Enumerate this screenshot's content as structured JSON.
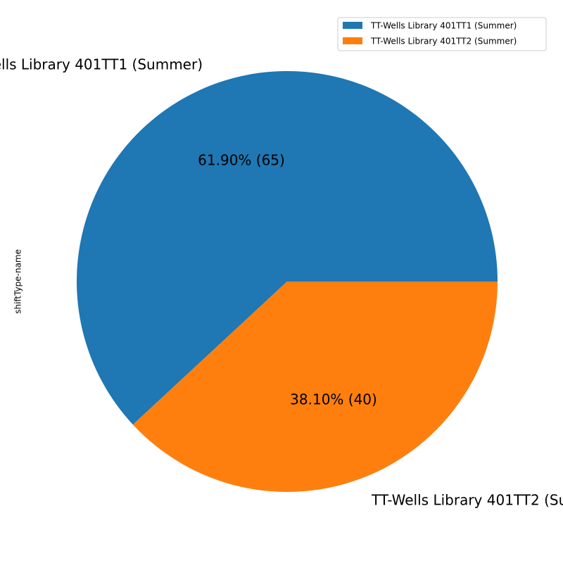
{
  "chart_data": {
    "type": "pie",
    "ylabel": "shiftType-name",
    "slices": [
      {
        "label": "TT-Wells Library 401TT1 (Summer)",
        "value": 65,
        "percent_label": "61.90%  (65)",
        "color": "#1f77b4"
      },
      {
        "label": "TT-Wells Library 401TT2 (Summer)",
        "value": 40,
        "percent_label": "38.10%  (40)",
        "color": "#ff7f0e"
      }
    ],
    "legend": {
      "placement": "top-right",
      "entries": [
        "TT-Wells Library 401TT1 (Summer)",
        "TT-Wells Library 401TT2 (Summer)"
      ]
    }
  }
}
